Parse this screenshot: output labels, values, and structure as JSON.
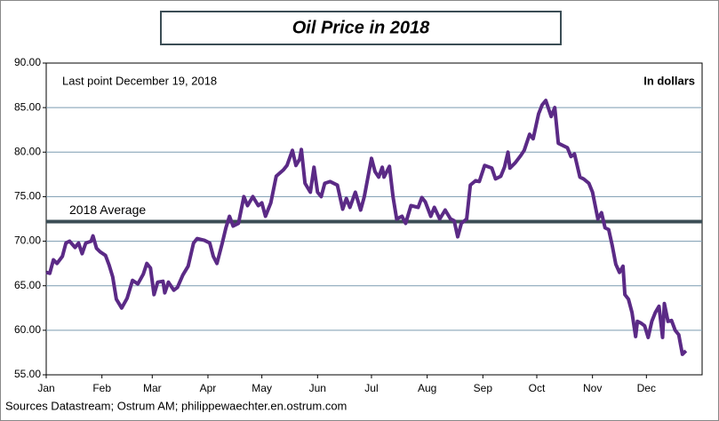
{
  "chart_data": {
    "type": "line",
    "title": "Oil Price in 2018",
    "annotation": "Last point December 19, 2018",
    "unit_label": "In dollars",
    "source": "Sources Datastream; Ostrum AM; philippewaechter.en.ostrum.com",
    "average": {
      "label": "2018 Average",
      "value": 72.2,
      "color": "#3b4d55"
    },
    "x": [
      1,
      3,
      5,
      7,
      10,
      12,
      14,
      17,
      19,
      21,
      23,
      26,
      27,
      29,
      31,
      34,
      36,
      38,
      40,
      43,
      46,
      49,
      52,
      55,
      57,
      59,
      61,
      63,
      66,
      67,
      69,
      72,
      74,
      77,
      80,
      83,
      85,
      89,
      92,
      94,
      96,
      99,
      101,
      103,
      105,
      108,
      111,
      113,
      116,
      119,
      121,
      123,
      126,
      129,
      133,
      135,
      138,
      140,
      142,
      143,
      145,
      148,
      150,
      152,
      154,
      156,
      159,
      163,
      166,
      168,
      170,
      173,
      176,
      178,
      182,
      184,
      186,
      188,
      189,
      192,
      194,
      196,
      199,
      201,
      204,
      208,
      210,
      212,
      215,
      217,
      220,
      223,
      226,
      228,
      230,
      232,
      235,
      237,
      240,
      242,
      245,
      249,
      251,
      254,
      256,
      258,
      259,
      262,
      265,
      267,
      270,
      272,
      275,
      277,
      279,
      282,
      284,
      286,
      289,
      291,
      293,
      295,
      298,
      300,
      303,
      305,
      307,
      308,
      310,
      312,
      314,
      316,
      318,
      320,
      322,
      323,
      325,
      327,
      329,
      330,
      332,
      334,
      336,
      338,
      340,
      342,
      344,
      345,
      347,
      349,
      351,
      353,
      355,
      357
    ],
    "series": [
      {
        "name": "Oil Price",
        "color": "#5b2a86",
        "values": [
          66.5,
          66.4,
          67.9,
          67.5,
          68.3,
          69.8,
          70,
          69.3,
          69.8,
          68.6,
          69.8,
          70,
          70.6,
          69.2,
          68.8,
          68.4,
          67.3,
          66,
          63.5,
          62.5,
          63.6,
          65.6,
          65.2,
          66.3,
          67.5,
          67,
          64,
          65.4,
          65.5,
          64.2,
          65.4,
          64.5,
          64.8,
          66.2,
          67.2,
          69.8,
          70.3,
          70.1,
          69.8,
          68.3,
          67.5,
          69.8,
          71.5,
          72.8,
          71.7,
          72,
          75,
          74,
          75,
          74,
          74.3,
          72.8,
          74.3,
          77.3,
          78,
          78.5,
          80.2,
          78.5,
          79.2,
          80.3,
          76.5,
          75.5,
          78.3,
          75.5,
          75,
          76.5,
          76.7,
          76.3,
          73.6,
          74.8,
          73.8,
          75.5,
          73.5,
          75,
          79.3,
          77.8,
          77.2,
          78.3,
          77.2,
          78.4,
          75,
          72.5,
          72.8,
          72,
          74,
          73.8,
          74.9,
          74.4,
          72.8,
          73.8,
          72.5,
          73.5,
          72.5,
          72.3,
          70.5,
          72,
          72.5,
          76.3,
          76.8,
          76.7,
          78.5,
          78.2,
          77,
          77.3,
          78.3,
          80,
          78.2,
          78.8,
          79.6,
          80.2,
          82,
          81.5,
          84.3,
          85.3,
          85.8,
          84,
          85,
          81,
          80.7,
          80.5,
          79.5,
          79.8,
          77.2,
          77,
          76.5,
          75.5,
          73.5,
          72.5,
          73.2,
          71.5,
          71.3,
          69.5,
          67.4,
          66.5,
          67.2,
          64,
          63.5,
          62,
          59.3,
          61,
          60.8,
          60.5,
          59.2,
          61,
          62,
          62.7,
          59.2,
          63,
          61,
          61.1,
          60,
          59.5,
          57.3,
          57.7
        ]
      }
    ],
    "xlim": [
      1,
      366
    ],
    "xticks": [
      {
        "value": 1,
        "label": "Jan"
      },
      {
        "value": 32,
        "label": "Feb"
      },
      {
        "value": 60,
        "label": "Mar"
      },
      {
        "value": 91,
        "label": "Apr"
      },
      {
        "value": 121,
        "label": "May"
      },
      {
        "value": 152,
        "label": "Jun"
      },
      {
        "value": 182,
        "label": "Jul"
      },
      {
        "value": 213,
        "label": "Aug"
      },
      {
        "value": 244,
        "label": "Sep"
      },
      {
        "value": 274,
        "label": "Oct"
      },
      {
        "value": 305,
        "label": "Nov"
      },
      {
        "value": 335,
        "label": "Dec"
      }
    ],
    "ylim": [
      55,
      90
    ],
    "yticks": [
      {
        "value": 55,
        "label": "55.00"
      },
      {
        "value": 60,
        "label": "60.00"
      },
      {
        "value": 65,
        "label": "65.00"
      },
      {
        "value": 70,
        "label": "70.00"
      },
      {
        "value": 75,
        "label": "75.00"
      },
      {
        "value": 80,
        "label": "80.00"
      },
      {
        "value": 85,
        "label": "85.00"
      },
      {
        "value": 90,
        "label": "90.00"
      }
    ],
    "grid": true,
    "grid_color": "#7b9cb0"
  }
}
